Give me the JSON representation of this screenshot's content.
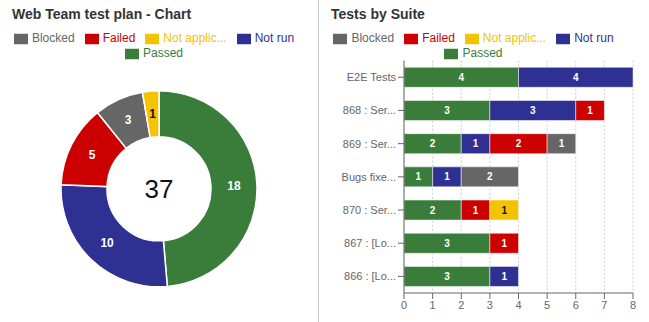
{
  "chart_data": [
    {
      "type": "pie",
      "title": "Web Team test plan - Chart",
      "categories": [
        "Passed",
        "Not run",
        "Failed",
        "Blocked",
        "Not applic..."
      ],
      "values": [
        18,
        10,
        5,
        3,
        1
      ],
      "colors": [
        "#3a7d3a",
        "#2e3192",
        "#cc0000",
        "#666666",
        "#f5c200"
      ],
      "data_labels": true,
      "legend": "top",
      "annotations": [
        "37"
      ]
    },
    {
      "type": "bar",
      "title": "Tests by Suite",
      "orientation": "horizontal",
      "stacked": true,
      "categories": [
        "E2E Tests",
        "868 : Ser...",
        "869 : Ser...",
        "Bugs fixe...",
        "870 : Ser...",
        "867 : [Lo...",
        "866 : [Lo..."
      ],
      "series": [
        {
          "name": "Passed",
          "color": "#3a7d3a",
          "values": [
            4,
            3,
            2,
            1,
            2,
            3,
            3
          ]
        },
        {
          "name": "Not run",
          "color": "#2e3192",
          "values": [
            4,
            3,
            1,
            1,
            0,
            0,
            1
          ]
        },
        {
          "name": "Failed",
          "color": "#cc0000",
          "values": [
            0,
            1,
            2,
            0,
            1,
            1,
            0
          ]
        },
        {
          "name": "Blocked",
          "color": "#666666",
          "values": [
            0,
            0,
            1,
            2,
            0,
            0,
            0
          ]
        },
        {
          "name": "Not applic...",
          "color": "#f5c200",
          "values": [
            0,
            0,
            0,
            0,
            1,
            0,
            0
          ]
        }
      ],
      "xlim": [
        0,
        8
      ],
      "xticks": [
        0,
        1,
        2,
        3,
        4,
        5,
        6,
        7,
        8
      ],
      "grid": true,
      "data_labels": true,
      "legend": "top"
    }
  ]
}
